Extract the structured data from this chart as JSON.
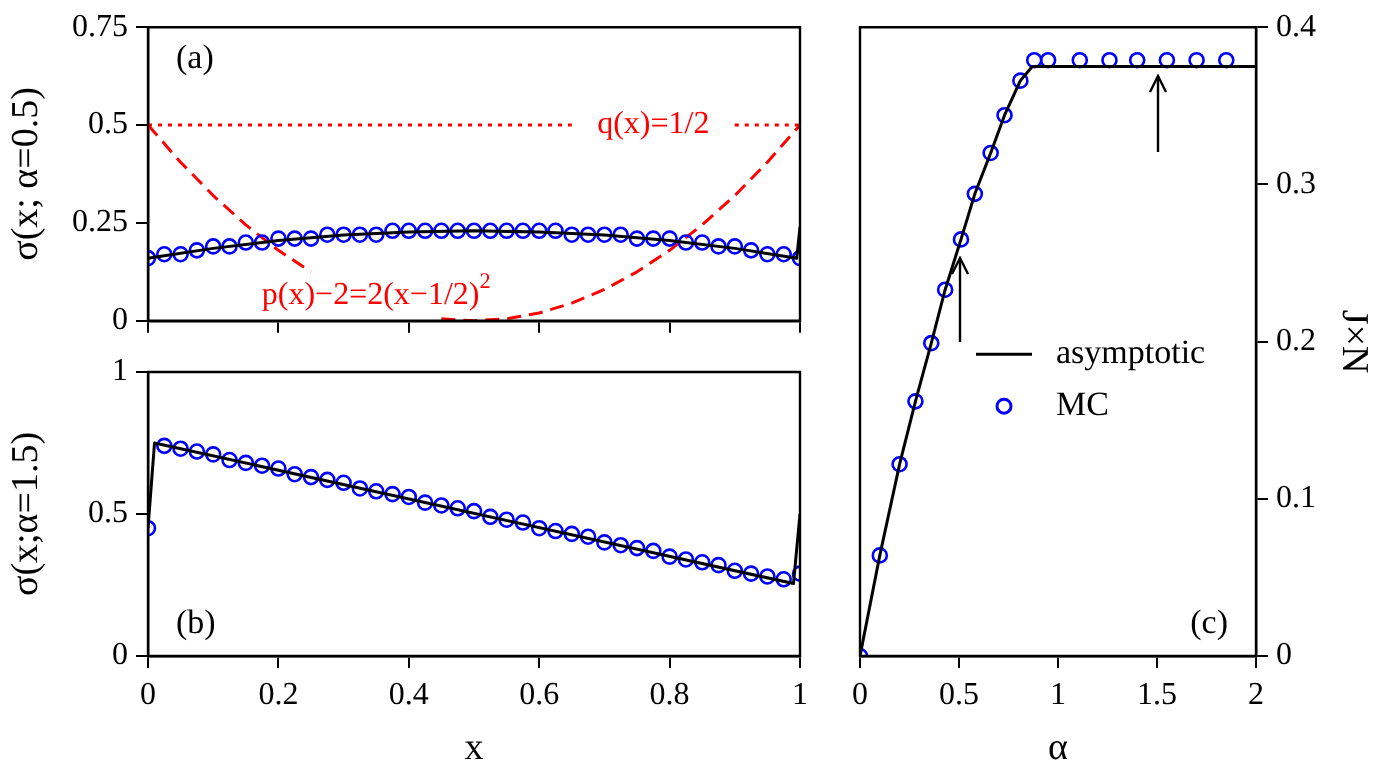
{
  "chart_data": [
    {
      "type": "line",
      "ylabel": "σ(x; α=0.5)",
      "xlim": [
        0,
        1
      ],
      "ylim": [
        0,
        0.75
      ],
      "xticks": [
        0,
        0.2,
        0.4,
        0.6,
        0.8,
        1
      ],
      "yticks": [
        0,
        0.25,
        0.5,
        0.75
      ],
      "tick_labels": "y",
      "annotations": [
        "(a)"
      ],
      "series": [
        {
          "type": "line",
          "color": "#000000",
          "marker": "none",
          "line_style": "solid",
          "x": [
            0,
            0.1,
            0.2,
            0.3,
            0.4,
            0.5,
            0.6,
            0.7,
            0.8,
            0.9,
            0.995,
            1
          ],
          "values": [
            0.16,
            0.185,
            0.205,
            0.219,
            0.227,
            0.23,
            0.227,
            0.219,
            0.205,
            0.185,
            0.16,
            0.24
          ]
        },
        {
          "type": "scatter",
          "color": "#0000ff",
          "marker": "circle",
          "x": [
            0,
            0.025,
            0.05,
            0.075,
            0.1,
            0.125,
            0.15,
            0.175,
            0.2,
            0.225,
            0.25,
            0.275,
            0.3,
            0.325,
            0.35,
            0.375,
            0.4,
            0.425,
            0.45,
            0.475,
            0.5,
            0.525,
            0.55,
            0.575,
            0.6,
            0.625,
            0.65,
            0.675,
            0.7,
            0.725,
            0.75,
            0.775,
            0.8,
            0.825,
            0.85,
            0.875,
            0.9,
            0.925,
            0.95,
            0.975,
            1
          ],
          "values": [
            0.16,
            0.17,
            0.17,
            0.18,
            0.19,
            0.19,
            0.2,
            0.2,
            0.21,
            0.21,
            0.21,
            0.22,
            0.22,
            0.22,
            0.22,
            0.23,
            0.23,
            0.23,
            0.23,
            0.23,
            0.23,
            0.23,
            0.23,
            0.23,
            0.23,
            0.23,
            0.22,
            0.22,
            0.22,
            0.22,
            0.21,
            0.21,
            0.21,
            0.2,
            0.2,
            0.19,
            0.19,
            0.18,
            0.17,
            0.17,
            0.16
          ]
        },
        {
          "type": "line",
          "name": "q(x)=1/2",
          "color": "#ff0000",
          "marker": "none",
          "line_style": "dotted",
          "x": [
            0,
            0.65,
            0.7,
            0.75,
            0.8,
            0.85,
            0.9,
            1
          ],
          "values": [
            0.5,
            0.5,
            null,
            null,
            null,
            null,
            0.5,
            0.5
          ]
        },
        {
          "type": "line",
          "name": "p(x)−2=2(x−1/2)$^{2}$",
          "color": "#ff0000",
          "marker": "none",
          "line_style": "dashed",
          "x": [
            0,
            0.05,
            0.1,
            0.15,
            0.2,
            0.25,
            0.3,
            0.35,
            0.4,
            0.45,
            0.5,
            0.55,
            0.6,
            0.65,
            0.7,
            0.75,
            0.8,
            0.85,
            0.9,
            0.95,
            1
          ],
          "values": [
            0.5,
            0.405,
            0.32,
            0.245,
            0.18,
            0.125,
            null,
            null,
            null,
            0.005,
            0,
            0.005,
            0.02,
            0.045,
            0.08,
            0.125,
            0.18,
            0.245,
            0.32,
            0.405,
            0.5
          ]
        }
      ]
    },
    {
      "type": "line",
      "xlabel": "x",
      "ylabel": "σ(x;α=1.5)",
      "xlim": [
        0,
        1
      ],
      "ylim": [
        0,
        1
      ],
      "xticks": [
        0,
        0.2,
        0.4,
        0.6,
        0.8,
        1
      ],
      "yticks": [
        0,
        0.5,
        1
      ],
      "annotations": [
        "(b)"
      ],
      "series": [
        {
          "type": "line",
          "color": "#000000",
          "marker": "none",
          "line_style": "solid",
          "x": [
            0,
            0.01,
            0.99,
            1
          ],
          "values": [
            0.45,
            0.75,
            0.255,
            0.5
          ]
        },
        {
          "type": "scatter",
          "color": "#0000ff",
          "marker": "circle",
          "x": [
            0,
            0.025,
            0.05,
            0.075,
            0.1,
            0.125,
            0.15,
            0.175,
            0.2,
            0.225,
            0.25,
            0.275,
            0.3,
            0.325,
            0.35,
            0.375,
            0.4,
            0.425,
            0.45,
            0.475,
            0.5,
            0.525,
            0.55,
            0.575,
            0.6,
            0.625,
            0.65,
            0.675,
            0.7,
            0.725,
            0.75,
            0.775,
            0.8,
            0.825,
            0.85,
            0.875,
            0.9,
            0.925,
            0.95,
            0.975,
            1
          ],
          "values": [
            0.45,
            0.74,
            0.73,
            0.72,
            0.71,
            0.69,
            0.68,
            0.67,
            0.66,
            0.64,
            0.63,
            0.62,
            0.61,
            0.59,
            0.58,
            0.57,
            0.56,
            0.54,
            0.53,
            0.52,
            0.51,
            0.49,
            0.48,
            0.47,
            0.45,
            0.44,
            0.43,
            0.42,
            0.4,
            0.39,
            0.38,
            0.37,
            0.35,
            0.34,
            0.33,
            0.32,
            0.3,
            0.29,
            0.28,
            0.27,
            0.29
          ]
        }
      ]
    },
    {
      "type": "line",
      "xlabel": "α",
      "y2label": "J×N",
      "xlim": [
        0,
        2
      ],
      "y2lim": [
        0,
        0.4
      ],
      "xticks": [
        0,
        0.5,
        1,
        1.5,
        2
      ],
      "y2ticks": [
        0,
        0.1,
        0.2,
        0.3,
        0.4
      ],
      "legend": "right",
      "annotations": [
        "(c)"
      ],
      "series": [
        {
          "type": "line",
          "name": "asymptotic",
          "axis": "y2",
          "color": "#000000",
          "marker": "none",
          "line_style": "solid",
          "x": [
            0,
            0.1,
            0.2,
            0.28,
            0.36,
            0.43,
            0.51,
            0.58,
            0.66,
            0.73,
            0.81,
            0.87,
            2
          ],
          "values": [
            0,
            0.064,
            0.122,
            0.162,
            0.199,
            0.233,
            0.265,
            0.294,
            0.32,
            0.344,
            0.366,
            0.375,
            0.375
          ]
        },
        {
          "type": "scatter",
          "name": "MC",
          "axis": "y2",
          "color": "#0000ff",
          "marker": "circle",
          "x": [
            0,
            0.1,
            0.2,
            0.28,
            0.36,
            0.43,
            0.51,
            0.58,
            0.66,
            0.73,
            0.81,
            0.88,
            0.95,
            1.11,
            1.26,
            1.4,
            1.55,
            1.7,
            1.85
          ],
          "values": [
            0,
            0.064,
            0.122,
            0.162,
            0.199,
            0.233,
            0.265,
            0.294,
            0.32,
            0.344,
            0.366,
            0.379,
            0.379,
            0.379,
            0.379,
            0.379,
            0.379,
            0.379,
            0.379
          ]
        }
      ]
    }
  ]
}
